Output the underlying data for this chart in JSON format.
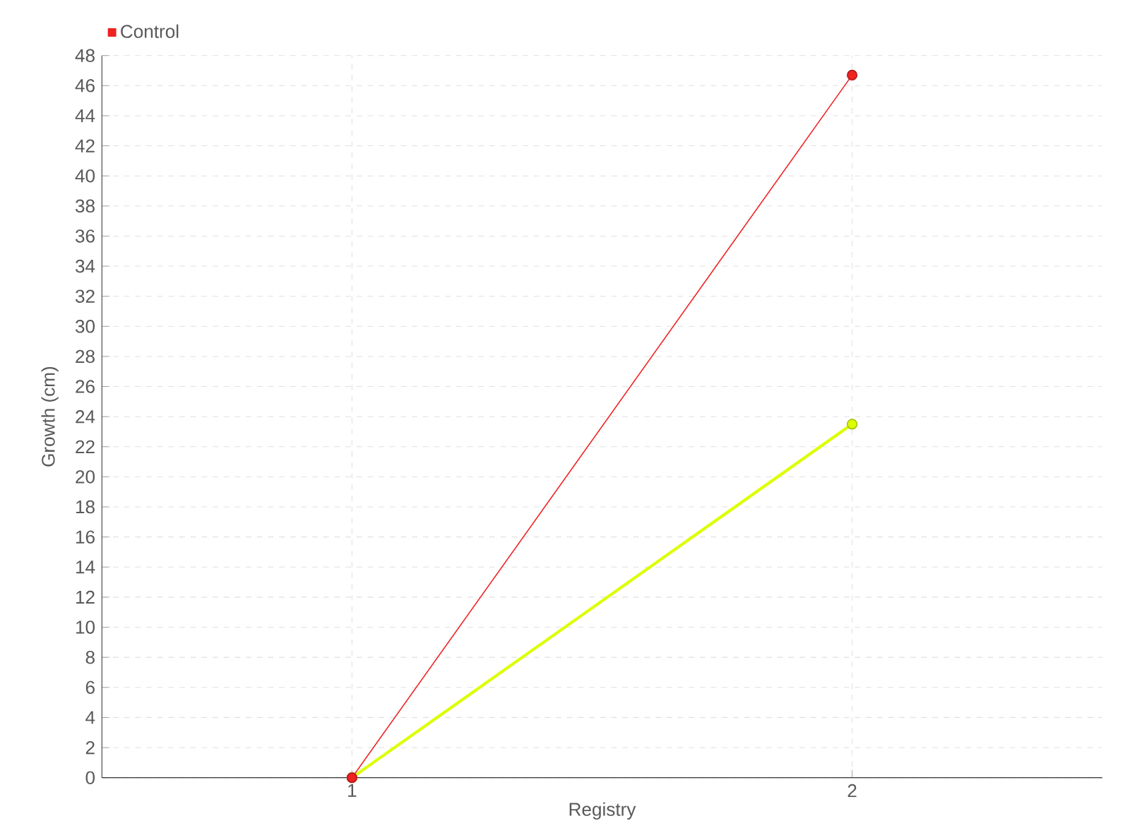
{
  "chart_data": {
    "type": "line",
    "xlabel": "Registry",
    "ylabel": "Growth (cm)",
    "x": [
      1,
      2
    ],
    "series": [
      {
        "color": "#ddff00",
        "values": [
          0,
          23.5
        ]
      },
      {
        "name": "Control",
        "color": "#ee2222",
        "values": [
          0,
          46.7
        ]
      }
    ],
    "xlim": [
      0.5,
      2.5
    ],
    "xticks": [
      1,
      2
    ],
    "ylim": [
      0,
      48
    ],
    "yticks": [
      0,
      2,
      4,
      6,
      8,
      10,
      12,
      14,
      16,
      18,
      20,
      22,
      24,
      26,
      28,
      30,
      32,
      34,
      36,
      38,
      40,
      42,
      44,
      46,
      48
    ],
    "grid": true,
    "legend": "top left",
    "marker": "circle",
    "line_style": "solid"
  }
}
